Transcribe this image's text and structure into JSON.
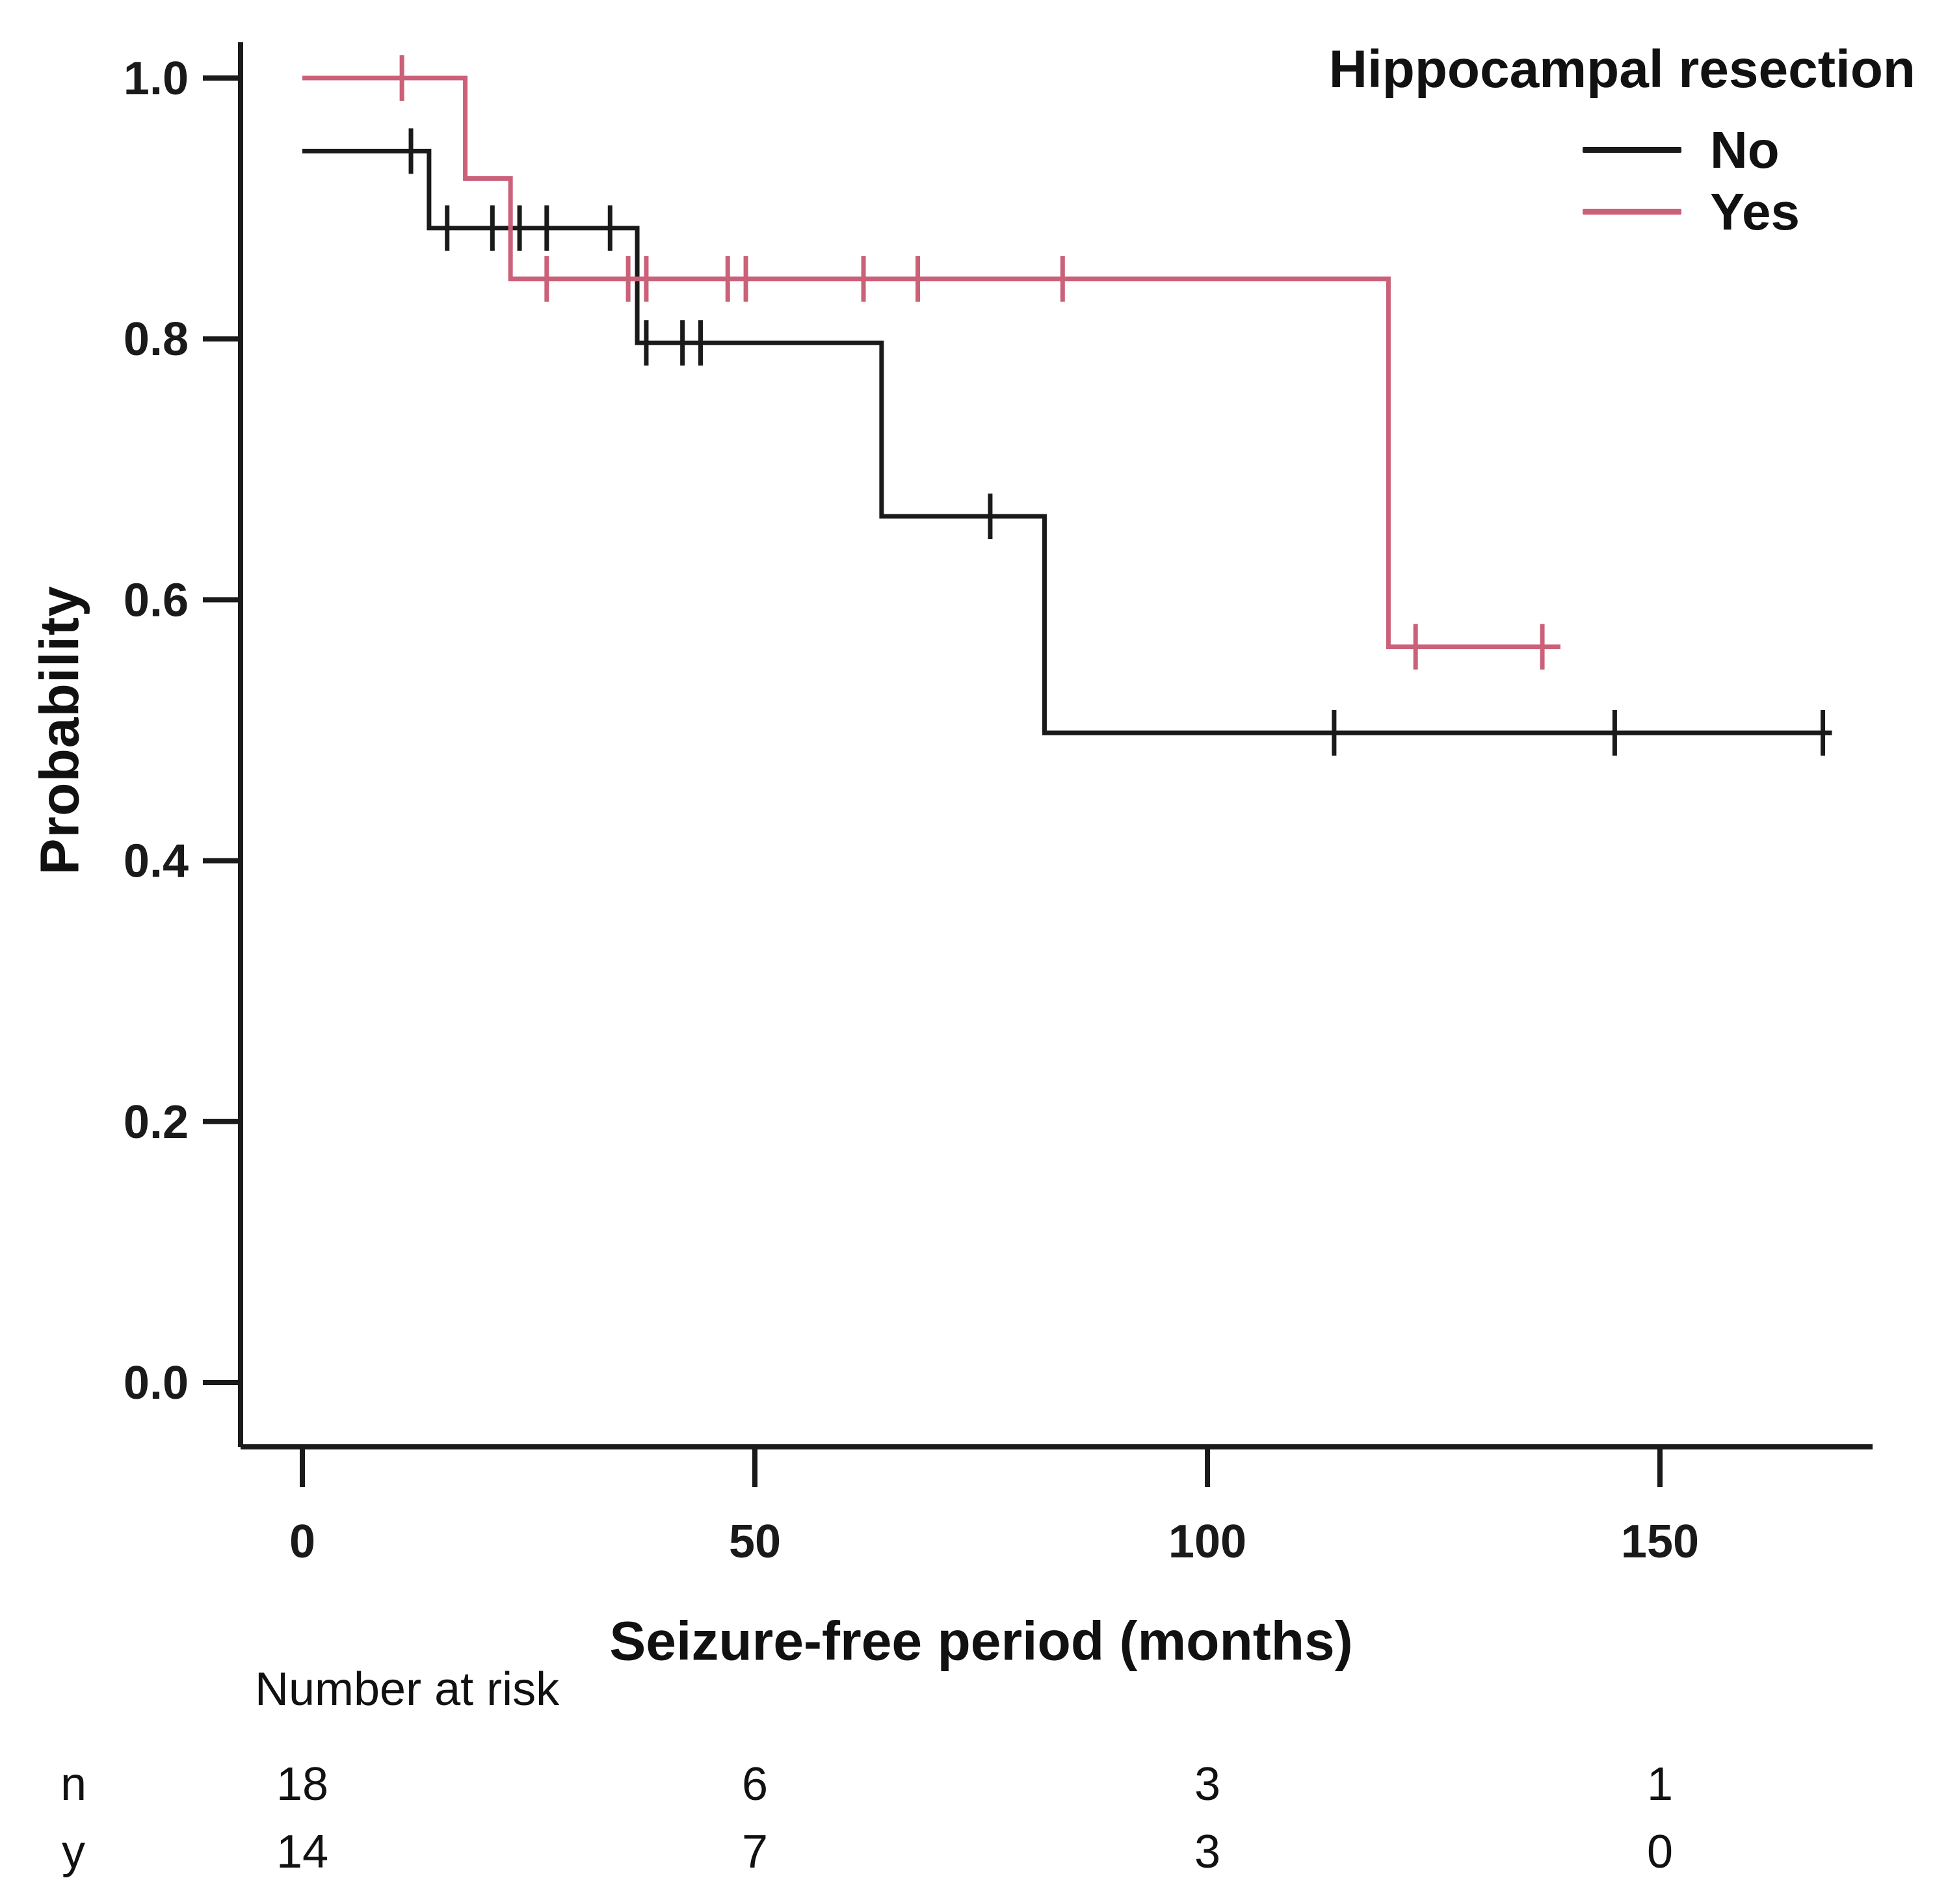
{
  "chart_data": {
    "type": "line",
    "subtype": "kaplan_meier_survival",
    "title": "",
    "xlabel": "Seizure-free period (months)",
    "ylabel": "Probability",
    "xlim": [
      0,
      174
    ],
    "ylim": [
      0.0,
      1.0
    ],
    "xticks": {
      "values": [
        0,
        50,
        100,
        150
      ],
      "labels": [
        "0",
        "50",
        "100",
        "150"
      ]
    },
    "yticks": {
      "values": [
        1.0,
        0.8,
        0.6,
        0.4,
        0.2,
        0.0
      ],
      "labels": [
        "1.0",
        "0.8",
        "0.6",
        "0.4",
        "0.2",
        "0.0"
      ]
    },
    "grid": false,
    "legend": {
      "title": "Hippocampal resection",
      "position": "top-right",
      "entries": [
        {
          "label": "No",
          "color": "#1a1a1a"
        },
        {
          "label": "Yes",
          "color": "#cb6079"
        }
      ]
    },
    "series": [
      {
        "name": "No",
        "color": "#1a1a1a",
        "steps": [
          [
            0,
            0.944
          ],
          [
            14,
            0.885
          ],
          [
            37,
            0.797
          ],
          [
            64,
            0.664
          ],
          [
            82,
            0.498
          ]
        ],
        "end_time": 169,
        "censor_marks": [
          [
            12,
            0.944
          ],
          [
            16,
            0.885
          ],
          [
            21,
            0.885
          ],
          [
            24,
            0.885
          ],
          [
            27,
            0.885
          ],
          [
            34,
            0.885
          ],
          [
            38,
            0.797
          ],
          [
            42,
            0.797
          ],
          [
            44,
            0.797
          ],
          [
            76,
            0.664
          ],
          [
            114,
            0.498
          ],
          [
            145,
            0.498
          ],
          [
            168,
            0.498
          ]
        ]
      },
      {
        "name": "Yes",
        "color": "#cb6079",
        "steps": [
          [
            0,
            1.0
          ],
          [
            18,
            0.923
          ],
          [
            23,
            0.846
          ],
          [
            120,
            0.564
          ]
        ],
        "end_time": 139,
        "censor_marks": [
          [
            11,
            1.0
          ],
          [
            27,
            0.846
          ],
          [
            36,
            0.846
          ],
          [
            38,
            0.846
          ],
          [
            47,
            0.846
          ],
          [
            49,
            0.846
          ],
          [
            62,
            0.846
          ],
          [
            68,
            0.846
          ],
          [
            84,
            0.846
          ],
          [
            123,
            0.564
          ],
          [
            137,
            0.564
          ]
        ]
      }
    ],
    "risk_table": {
      "header": "Number at risk",
      "times": [
        0,
        50,
        100,
        150
      ],
      "rows": [
        {
          "label": "n",
          "values": [
            "18",
            "6",
            "3",
            "1"
          ]
        },
        {
          "label": "y",
          "values": [
            "14",
            "7",
            "3",
            "0"
          ]
        }
      ]
    }
  }
}
